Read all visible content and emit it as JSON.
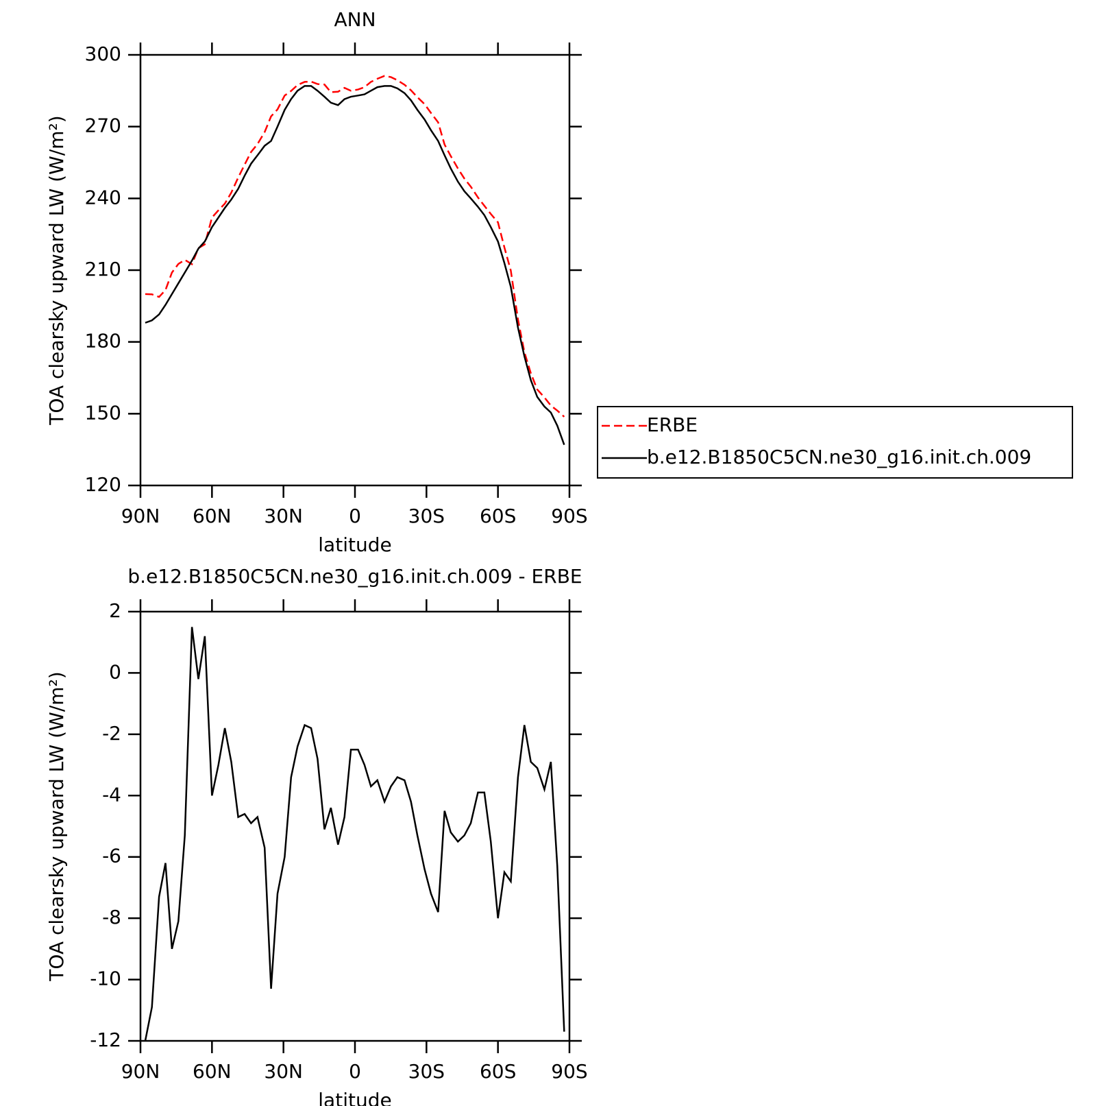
{
  "chart_data": [
    {
      "type": "line",
      "title": "ANN",
      "x_label": "latitude",
      "y_label": "TOA clearsky upward LW (W/m²)",
      "xlim": [
        90,
        -90
      ],
      "xticks": [
        {
          "value": 90,
          "label": "90N"
        },
        {
          "value": 60,
          "label": "60N"
        },
        {
          "value": 30,
          "label": "30N"
        },
        0,
        {
          "value": -30,
          "label": "30S"
        },
        {
          "value": -60,
          "label": "60S"
        },
        {
          "value": -90,
          "label": "90S"
        }
      ],
      "ylim": [
        120,
        300
      ],
      "yticks": [
        120,
        150,
        180,
        210,
        240,
        270,
        300
      ],
      "legend": "right",
      "x": [
        88,
        85.2,
        82.2,
        79.5,
        76.8,
        74.1,
        71.4,
        68.4,
        65.7,
        63,
        60,
        57.3,
        54.6,
        51.9,
        49,
        46.3,
        43.6,
        40.9,
        37.9,
        35.2,
        32.5,
        29.5,
        26.8,
        24.1,
        21.1,
        18.4,
        15.7,
        12.8,
        10.1,
        7.1,
        4.4,
        1.7,
        -1.3,
        -4,
        -6.7,
        -9.4,
        -12.4,
        -15.1,
        -17.8,
        -20.8,
        -23.5,
        -26.2,
        -29.2,
        -31.9,
        -34.9,
        -37.6,
        -40.2,
        -43.2,
        -45.9,
        -48.6,
        -51.6,
        -54.3,
        -57,
        -60,
        -62.7,
        -65.4,
        -68.4,
        -71.1,
        -73.8,
        -76.5,
        -79.5,
        -82.2,
        -84.9,
        -87.8
      ],
      "series": [
        {
          "name": "ERBE",
          "color": "#ff0000",
          "dash": true,
          "values": [
            200,
            199.9,
            198.8,
            201.7,
            209,
            212.6,
            214.3,
            212.5,
            219.2,
            220.8,
            232,
            235,
            237.8,
            242.4,
            248.7,
            254.1,
            259.4,
            262.7,
            267.7,
            274.3,
            277.2,
            283,
            284.9,
            287.4,
            288.7,
            288.8,
            287.8,
            287.6,
            284.4,
            284.6,
            286.2,
            285,
            285.5,
            286.5,
            288.7,
            290,
            291.2,
            290.7,
            289.4,
            287.5,
            285.2,
            282.3,
            279.4,
            275.7,
            271.8,
            262.5,
            257.7,
            252.5,
            248.3,
            244.9,
            240.4,
            236.9,
            233.5,
            230,
            219.5,
            209.8,
            189.4,
            175.7,
            166.9,
            160.1,
            156.8,
            153.4,
            151.3,
            148.7
          ]
        },
        {
          "name": "b.e12.B1850C5CN.ne30_g16.init.ch.009",
          "color": "#000000",
          "dash": false,
          "values": [
            188,
            189,
            191.5,
            195.5,
            200,
            204.5,
            209,
            214,
            219,
            222,
            228,
            232,
            236,
            239.5,
            244,
            249.5,
            254.5,
            258,
            262,
            264,
            270,
            277,
            281.5,
            285,
            287,
            287,
            285,
            282.5,
            280,
            279,
            281.5,
            282.5,
            283,
            283.5,
            285,
            286.5,
            287,
            287,
            286,
            284,
            281,
            277,
            273,
            268.5,
            264,
            258,
            252.5,
            247,
            243,
            240,
            236.5,
            233,
            228,
            222,
            213,
            203,
            186,
            174,
            164,
            157,
            153,
            150.5,
            145,
            137
          ]
        }
      ]
    },
    {
      "type": "line",
      "title": "b.e12.B1850C5CN.ne30_g16.init.ch.009 - ERBE",
      "x_label": "latitude",
      "y_label": "TOA clearsky upward LW (W/m²)",
      "xlim": [
        90,
        -90
      ],
      "xticks": [
        {
          "value": 90,
          "label": "90N"
        },
        {
          "value": 60,
          "label": "60N"
        },
        {
          "value": 30,
          "label": "30N"
        },
        0,
        {
          "value": -30,
          "label": "30S"
        },
        {
          "value": -60,
          "label": "60S"
        },
        {
          "value": -90,
          "label": "90S"
        }
      ],
      "ylim": [
        -12,
        2
      ],
      "yticks": [
        -12,
        -10,
        -8,
        -6,
        -4,
        -2,
        0,
        2
      ],
      "x": [
        88,
        85.2,
        82.2,
        79.5,
        76.8,
        74.1,
        71.4,
        68.4,
        65.7,
        63,
        60,
        57.3,
        54.6,
        51.9,
        49,
        46.3,
        43.6,
        40.9,
        37.9,
        35.2,
        32.5,
        29.5,
        26.8,
        24.1,
        21.1,
        18.4,
        15.7,
        12.8,
        10.1,
        7.1,
        4.4,
        1.7,
        -1.3,
        -4,
        -6.7,
        -9.4,
        -12.4,
        -15.1,
        -17.8,
        -20.8,
        -23.5,
        -26.2,
        -29.2,
        -31.9,
        -34.9,
        -37.6,
        -40.2,
        -43.2,
        -45.9,
        -48.6,
        -51.6,
        -54.3,
        -57,
        -60,
        -62.7,
        -65.4,
        -68.4,
        -71.1,
        -73.8,
        -76.5,
        -79.5,
        -82.2,
        -84.9,
        -87.8
      ],
      "series": [
        {
          "color": "#000000",
          "dash": false,
          "values": [
            -12,
            -10.9,
            -7.3,
            -6.2,
            -9,
            -8.1,
            -5.3,
            1.5,
            -0.2,
            1.2,
            -4,
            -3,
            -1.8,
            -2.9,
            -4.7,
            -4.6,
            -4.9,
            -4.7,
            -5.7,
            -10.3,
            -7.2,
            -6,
            -3.4,
            -2.4,
            -1.7,
            -1.8,
            -2.8,
            -5.1,
            -4.4,
            -5.6,
            -4.7,
            -2.5,
            -2.5,
            -3,
            -3.7,
            -3.5,
            -4.2,
            -3.7,
            -3.4,
            -3.5,
            -4.2,
            -5.3,
            -6.4,
            -7.2,
            -7.8,
            -4.5,
            -5.2,
            -5.5,
            -5.3,
            -4.9,
            -3.9,
            -3.9,
            -5.5,
            -8,
            -6.5,
            -6.8,
            -3.4,
            -1.7,
            -2.9,
            -3.1,
            -3.8,
            -2.9,
            -6.3,
            -11.7
          ]
        }
      ]
    }
  ]
}
